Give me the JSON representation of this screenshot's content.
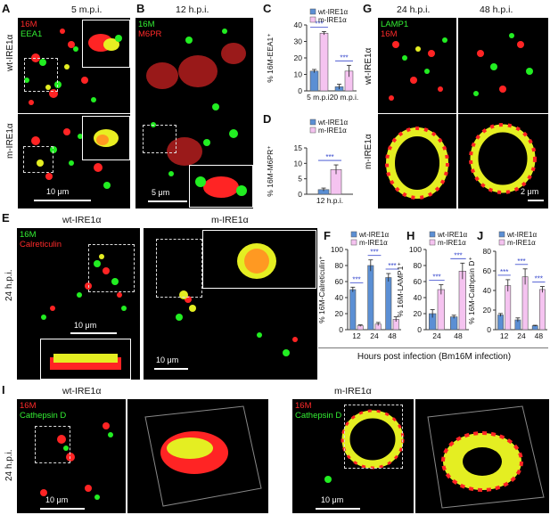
{
  "panels": {
    "A": {
      "letter": "A",
      "time": "5 m.p.i.",
      "ch1": "16M",
      "ch2": "EEA1",
      "row1": "wt-IRE1α",
      "row2": "m-IRE1α",
      "scale": "10 μm"
    },
    "B": {
      "letter": "B",
      "time": "12 h.p.i.",
      "ch1": "16M",
      "ch2": "M6PR",
      "scale": "5 μm"
    },
    "C": {
      "letter": "C"
    },
    "D": {
      "letter": "D"
    },
    "E": {
      "letter": "E",
      "col1": "wt-IRE1α",
      "col2": "m-IRE1α",
      "ch1": "16M",
      "ch2": "Calreticulin",
      "row": "24 h.p.i.",
      "scale1": "10 μm",
      "scale2": "10 μm"
    },
    "F": {
      "letter": "F"
    },
    "G": {
      "letter": "G",
      "time1": "24 h.p.i.",
      "time2": "48 h.p.i.",
      "ch1": "LAMP1",
      "ch2": "16M",
      "row1": "wt-IRE1α",
      "row2": "m-IRE1α",
      "scale": "2 μm"
    },
    "H": {
      "letter": "H"
    },
    "I": {
      "letter": "I",
      "col1": "wt-IRE1α",
      "col2": "m-IRE1α",
      "ch1": "16M",
      "ch2": "Cathepsin D",
      "row": "24 h.p.i.",
      "scale1": "10 μm",
      "scale2": "10 μm"
    },
    "J": {
      "letter": "J"
    }
  },
  "shared_xlabel": "Hours post infection (Bm16M infection)",
  "legend": {
    "wt": "wt-IRE1α",
    "m": "m-IRE1α"
  },
  "colors": {
    "wt": "#5b8fd4",
    "m": "#f5c3f0",
    "sig": "#3344cc",
    "red": "#ff2a2a",
    "green": "#33ee33"
  },
  "chart_data": [
    {
      "id": "C",
      "type": "bar",
      "ylabel": "% 16M-EEA1⁺",
      "categories": [
        "5 m.p.i.",
        "20 m.p.i."
      ],
      "ylim": [
        0,
        40
      ],
      "yticks": [
        0,
        10,
        20,
        30,
        40
      ],
      "series": [
        {
          "name": "wt-IRE1α",
          "values": [
            12,
            2.5
          ],
          "err": [
            1,
            1.5
          ]
        },
        {
          "name": "m-IRE1α",
          "values": [
            35,
            12
          ],
          "err": [
            1,
            3.5
          ]
        }
      ],
      "sig": [
        "***",
        "***"
      ]
    },
    {
      "id": "D",
      "type": "bar",
      "ylabel": "% 16M-M6PR⁺",
      "categories": [
        "12 h.p.i."
      ],
      "ylim": [
        0,
        15
      ],
      "yticks": [
        0,
        5,
        10,
        15
      ],
      "series": [
        {
          "name": "wt-IRE1α",
          "values": [
            1.5
          ],
          "err": [
            0.5
          ]
        },
        {
          "name": "m-IRE1α",
          "values": [
            8
          ],
          "err": [
            1.5
          ]
        }
      ],
      "sig": [
        "***"
      ]
    },
    {
      "id": "F",
      "type": "bar",
      "ylabel": "% 16M-Calreticulin⁺",
      "categories": [
        "12",
        "24",
        "48"
      ],
      "ylim": [
        0,
        100
      ],
      "yticks": [
        0,
        20,
        40,
        60,
        80,
        100
      ],
      "series": [
        {
          "name": "wt-IRE1α",
          "values": [
            50,
            80,
            65
          ],
          "err": [
            3,
            7,
            5
          ]
        },
        {
          "name": "m-IRE1α",
          "values": [
            5,
            7,
            13
          ],
          "err": [
            1,
            2,
            3
          ]
        }
      ],
      "sig": [
        "***",
        "***",
        "***"
      ]
    },
    {
      "id": "H",
      "type": "bar",
      "ylabel": "% 16M-LAMP1⁺",
      "categories": [
        "24",
        "48"
      ],
      "ylim": [
        0,
        100
      ],
      "yticks": [
        0,
        20,
        40,
        60,
        80,
        100
      ],
      "series": [
        {
          "name": "wt-IRE1α",
          "values": [
            20,
            16
          ],
          "err": [
            5,
            2
          ]
        },
        {
          "name": "m-IRE1α",
          "values": [
            50,
            73
          ],
          "err": [
            6,
            10
          ]
        }
      ],
      "sig": [
        "***",
        "***"
      ]
    },
    {
      "id": "J",
      "type": "bar",
      "ylabel": "% 16M-Cathpsin D⁺",
      "categories": [
        "12",
        "24",
        "48"
      ],
      "ylim": [
        0,
        80
      ],
      "yticks": [
        0,
        20,
        40,
        60,
        80
      ],
      "series": [
        {
          "name": "wt-IRE1α",
          "values": [
            15,
            10,
            4
          ],
          "err": [
            1.5,
            2,
            0.5
          ]
        },
        {
          "name": "m-IRE1α",
          "values": [
            45,
            54,
            41
          ],
          "err": [
            6,
            8,
            3
          ]
        }
      ],
      "sig": [
        "***",
        "***",
        "***"
      ]
    }
  ]
}
